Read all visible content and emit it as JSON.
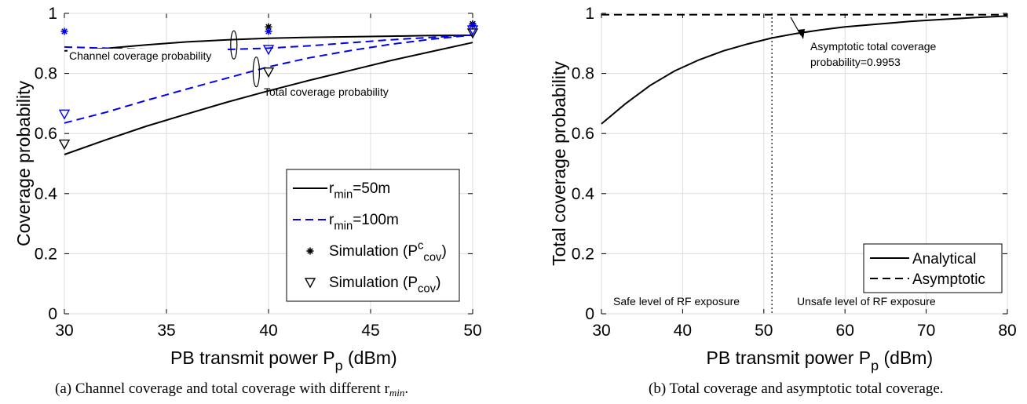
{
  "captions": {
    "a": "(a) Channel coverage and total coverage with different r",
    "a_sub": "min",
    "a_end": ".",
    "b": "(b) Total coverage and asymptotic total coverage."
  },
  "chart_data": [
    {
      "type": "line",
      "xlabel": "PB transmit power P",
      "xlabel_sub": "p",
      "xlabel_end": " (dBm)",
      "ylabel": "Coverage probability",
      "xlim": [
        30,
        50
      ],
      "ylim": [
        0,
        1
      ],
      "xticks": [
        30,
        35,
        40,
        45,
        50
      ],
      "yticks": [
        0,
        0.2,
        0.4,
        0.6,
        0.8,
        1
      ],
      "ytick_labels": [
        "0",
        "0.2",
        "0.4",
        "0.6",
        "0.8",
        "1"
      ],
      "grid": true,
      "legend_position": "bottom-right",
      "legend": [
        {
          "pre": "r",
          "sub": "min",
          "post": "=50m",
          "style": "solid-black"
        },
        {
          "pre": "r",
          "sub": "min",
          "post": "=100m",
          "style": "dashed-blue"
        },
        {
          "pre": "Simulation (P",
          "sup": "c",
          "sub": "cov",
          "post": ")",
          "style": "star-marker"
        },
        {
          "pre": "Simulation (P",
          "sub": "cov",
          "post": ")",
          "style": "triangle-marker"
        }
      ],
      "annotations": [
        "Channel coverage probability",
        "Total coverage probability"
      ],
      "series": [
        {
          "x": [
            30,
            32,
            34,
            36,
            38,
            40,
            42,
            44,
            46,
            48,
            50
          ],
          "values": [
            0.875,
            0.883,
            0.895,
            0.905,
            0.912,
            0.917,
            0.92,
            0.922,
            0.924,
            0.926,
            0.927
          ],
          "color": "#000000",
          "dash": "solid"
        },
        {
          "x": [
            30,
            32,
            34,
            36,
            38,
            40,
            42,
            44,
            46,
            48,
            50
          ],
          "values": [
            0.888,
            0.884,
            0.88,
            0.879,
            0.88,
            0.884,
            0.892,
            0.902,
            0.912,
            0.92,
            0.928
          ],
          "color": "#0000ee",
          "dash": "dashed"
        },
        {
          "x": [
            30,
            32,
            34,
            36,
            38,
            40,
            42,
            44,
            46,
            48,
            50
          ],
          "values": [
            0.53,
            0.578,
            0.624,
            0.665,
            0.705,
            0.742,
            0.777,
            0.81,
            0.843,
            0.873,
            0.903
          ],
          "color": "#000000",
          "dash": "solid"
        },
        {
          "x": [
            30,
            32,
            34,
            36,
            38,
            40,
            42,
            44,
            46,
            48,
            50
          ],
          "values": [
            0.635,
            0.67,
            0.71,
            0.748,
            0.785,
            0.822,
            0.852,
            0.876,
            0.897,
            0.914,
            0.928
          ],
          "color": "#0000ee",
          "dash": "dashed"
        }
      ],
      "sim_channel": [
        {
          "x": 30,
          "y": 0.94,
          "color": "#0000ee"
        },
        {
          "x": 40,
          "y": 0.955,
          "color": "#000000"
        },
        {
          "x": 40,
          "y": 0.94,
          "color": "#0000ee"
        },
        {
          "x": 50,
          "y": 0.965,
          "color": "#000000"
        },
        {
          "x": 50,
          "y": 0.96,
          "color": "#0000ee"
        }
      ],
      "sim_total": [
        {
          "x": 30,
          "y": 0.565,
          "color": "#000000"
        },
        {
          "x": 30,
          "y": 0.665,
          "color": "#0000ee"
        },
        {
          "x": 40,
          "y": 0.805,
          "color": "#000000"
        },
        {
          "x": 40,
          "y": 0.88,
          "color": "#0000ee"
        },
        {
          "x": 50,
          "y": 0.935,
          "color": "#000000"
        },
        {
          "x": 50,
          "y": 0.945,
          "color": "#0000ee"
        }
      ]
    },
    {
      "type": "line",
      "xlabel": "PB transmit power P",
      "xlabel_sub": "p",
      "xlabel_end": " (dBm)",
      "ylabel": "Total coverage probability",
      "xlim": [
        30,
        80
      ],
      "ylim": [
        0,
        1
      ],
      "xticks": [
        30,
        40,
        50,
        60,
        70,
        80
      ],
      "yticks": [
        0,
        0.2,
        0.4,
        0.6,
        0.8,
        1
      ],
      "ytick_labels": [
        "0",
        "0.2",
        "0.4",
        "0.6",
        "0.8",
        "1"
      ],
      "grid": true,
      "legend_position": "bottom-right",
      "legend": [
        {
          "pre": "Analytical",
          "style": "solid-black"
        },
        {
          "pre": "Asymptotic",
          "style": "dashed-black"
        }
      ],
      "annotation": [
        "Asymptotic total coverage",
        "probability=0.9953"
      ],
      "region_labels": [
        "Safe level of RF exposure",
        "Unsafe level of RF exposure"
      ],
      "threshold_x": 51,
      "asymptote": 0.9953,
      "series": [
        {
          "name": "Analytical",
          "x": [
            30,
            33,
            36,
            39,
            42,
            45,
            48,
            51,
            54,
            57,
            60,
            64,
            68,
            72,
            76,
            80
          ],
          "values": [
            0.632,
            0.7,
            0.76,
            0.808,
            0.845,
            0.875,
            0.898,
            0.918,
            0.933,
            0.945,
            0.955,
            0.964,
            0.973,
            0.98,
            0.986,
            0.991
          ],
          "color": "#000000",
          "dash": "solid"
        },
        {
          "name": "Asymptotic",
          "x": [
            30,
            80
          ],
          "values": [
            0.9953,
            0.9953
          ],
          "color": "#000000",
          "dash": "dashed"
        }
      ]
    }
  ]
}
